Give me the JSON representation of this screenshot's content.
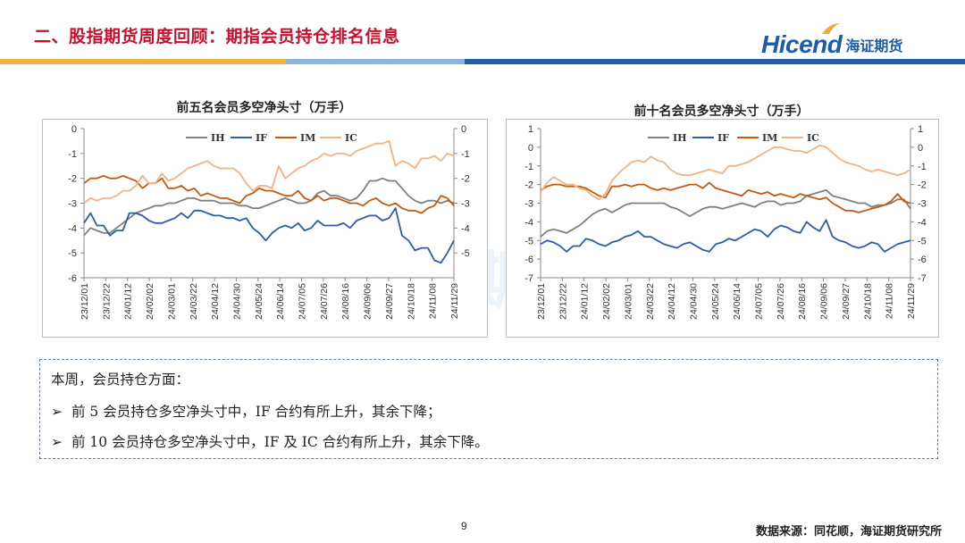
{
  "header": {
    "title": "二、股指期货周度回顾：期指会员持仓排名信息",
    "logo_en": "Hicend",
    "logo_cn": "海证期货"
  },
  "colors": {
    "IH": "#7f7f7f",
    "IF": "#2e5ca8",
    "IM": "#c55a11",
    "IC": "#f4b183",
    "title_red": "#c8102e",
    "bar_orange": "#f3a93c",
    "bar_blue": "#1f5fa6"
  },
  "x_labels": [
    "23/12/01",
    "23/12/22",
    "24/01/12",
    "24/02/02",
    "24/03/01",
    "24/03/22",
    "24/04/12",
    "24/04/30",
    "24/05/24",
    "24/06/14",
    "24/07/05",
    "24/07/26",
    "24/08/16",
    "24/09/06",
    "24/09/27",
    "24/10/18",
    "24/11/08",
    "24/11/29"
  ],
  "chart_data": [
    {
      "type": "line",
      "title": "前五名会员多空净头寸（万手）",
      "ylim": [
        -6,
        0
      ],
      "yticks": [
        0,
        -1,
        -2,
        -3,
        -4,
        -5,
        -6
      ],
      "y2ticks": [
        0,
        -1,
        -2,
        -3,
        -4,
        -5
      ],
      "legend": "top-center",
      "n_points": 58,
      "series": [
        {
          "name": "IH",
          "values": [
            -4.3,
            -4.0,
            -4.1,
            -4.2,
            -4.2,
            -4.0,
            -3.8,
            -3.6,
            -3.4,
            -3.3,
            -3.2,
            -3.1,
            -3.1,
            -3.0,
            -3.0,
            -2.9,
            -2.8,
            -2.8,
            -2.9,
            -2.9,
            -2.9,
            -3.0,
            -3.0,
            -3.0,
            -3.1,
            -3.1,
            -3.2,
            -3.2,
            -3.1,
            -3.0,
            -2.9,
            -2.8,
            -2.9,
            -3.0,
            -3.0,
            -2.9,
            -2.6,
            -2.5,
            -2.7,
            -2.7,
            -2.8,
            -2.9,
            -2.8,
            -2.5,
            -2.1,
            -2.1,
            -2.0,
            -2.1,
            -2.1,
            -2.4,
            -2.7,
            -2.9,
            -3.0,
            -2.9,
            -2.9,
            -3.0,
            -2.9,
            -3.0
          ]
        },
        {
          "name": "IF",
          "values": [
            -3.8,
            -3.4,
            -3.9,
            -3.9,
            -4.3,
            -4.1,
            -4.1,
            -3.4,
            -3.4,
            -3.5,
            -3.7,
            -3.8,
            -3.8,
            -3.7,
            -3.6,
            -3.4,
            -3.6,
            -3.3,
            -3.3,
            -3.4,
            -3.5,
            -3.5,
            -3.6,
            -3.6,
            -3.7,
            -3.6,
            -4.0,
            -4.2,
            -4.5,
            -4.2,
            -4.0,
            -3.9,
            -4.0,
            -3.8,
            -4.1,
            -4.0,
            -3.7,
            -3.9,
            -3.9,
            -3.9,
            -3.8,
            -4.0,
            -3.7,
            -3.6,
            -3.5,
            -3.5,
            -3.7,
            -3.6,
            -3.2,
            -4.3,
            -4.5,
            -4.9,
            -4.8,
            -4.8,
            -5.3,
            -5.4,
            -5.0,
            -4.5
          ]
        },
        {
          "name": "IM",
          "values": [
            -2.2,
            -2.0,
            -2.0,
            -1.9,
            -2.0,
            -2.0,
            -1.9,
            -2.0,
            -2.1,
            -2.4,
            -2.2,
            -2.2,
            -2.0,
            -2.4,
            -2.4,
            -2.3,
            -2.5,
            -2.4,
            -2.7,
            -2.6,
            -2.7,
            -2.8,
            -2.8,
            -2.9,
            -3.0,
            -2.7,
            -2.6,
            -2.4,
            -2.5,
            -2.5,
            -2.6,
            -2.7,
            -2.7,
            -2.5,
            -2.8,
            -2.9,
            -2.7,
            -2.9,
            -2.8,
            -2.8,
            -2.9,
            -3.0,
            -3.0,
            -3.1,
            -2.9,
            -2.8,
            -3.0,
            -3.1,
            -3.0,
            -3.2,
            -3.3,
            -3.3,
            -3.4,
            -3.2,
            -3.1,
            -2.7,
            -2.8,
            -3.1
          ]
        },
        {
          "name": "IC",
          "values": [
            -3.0,
            -2.8,
            -2.9,
            -2.8,
            -2.8,
            -2.7,
            -2.5,
            -2.5,
            -2.3,
            -1.9,
            -2.2,
            -2.2,
            -1.8,
            -2.1,
            -2.0,
            -1.8,
            -1.6,
            -1.5,
            -1.4,
            -1.3,
            -1.5,
            -1.6,
            -1.6,
            -1.6,
            -1.8,
            -2.2,
            -2.5,
            -2.3,
            -2.3,
            -2.4,
            -1.5,
            -2.0,
            -1.8,
            -1.6,
            -1.5,
            -1.3,
            -1.2,
            -1.0,
            -1.1,
            -1.0,
            -1.0,
            -1.1,
            -0.9,
            -0.8,
            -0.7,
            -0.6,
            -0.6,
            -0.5,
            -1.5,
            -1.3,
            -1.4,
            -1.6,
            -1.2,
            -1.2,
            -1.1,
            -1.3,
            -1.0,
            -1.1
          ]
        }
      ]
    },
    {
      "type": "line",
      "title": "前十名会员多空净头寸（万手）",
      "ylim": [
        -7,
        1
      ],
      "yticks": [
        1,
        0,
        -1,
        -2,
        -3,
        -4,
        -5,
        -6,
        -7
      ],
      "y2ticks": [
        1,
        0,
        -1,
        -2,
        -3,
        -4,
        -5,
        -6,
        -7
      ],
      "legend": "top-center",
      "n_points": 58,
      "series": [
        {
          "name": "IH",
          "values": [
            -4.8,
            -4.5,
            -4.4,
            -4.5,
            -4.6,
            -4.4,
            -4.2,
            -3.9,
            -3.6,
            -3.4,
            -3.3,
            -3.5,
            -3.3,
            -3.1,
            -3.0,
            -3.0,
            -3.0,
            -3.0,
            -3.0,
            -3.0,
            -3.2,
            -3.3,
            -3.5,
            -3.7,
            -3.5,
            -3.3,
            -3.2,
            -3.2,
            -3.3,
            -3.2,
            -3.1,
            -3.0,
            -3.1,
            -3.2,
            -3.0,
            -2.9,
            -2.9,
            -3.1,
            -3.0,
            -3.0,
            -2.9,
            -2.6,
            -2.5,
            -2.4,
            -2.3,
            -2.6,
            -2.7,
            -2.8,
            -2.9,
            -3.0,
            -3.0,
            -3.2,
            -3.1,
            -3.1,
            -3.0,
            -2.8,
            -2.8,
            -3.3
          ]
        },
        {
          "name": "IF",
          "values": [
            -5.2,
            -5.0,
            -5.1,
            -5.3,
            -5.6,
            -5.3,
            -5.3,
            -4.9,
            -5.0,
            -5.2,
            -5.3,
            -5.1,
            -5.0,
            -4.8,
            -4.7,
            -4.5,
            -4.8,
            -4.8,
            -5.0,
            -5.2,
            -5.3,
            -5.4,
            -5.2,
            -5.1,
            -5.3,
            -5.5,
            -5.6,
            -5.2,
            -5.1,
            -4.9,
            -5.0,
            -4.8,
            -4.6,
            -4.4,
            -4.5,
            -4.8,
            -4.4,
            -4.2,
            -4.3,
            -4.5,
            -4.6,
            -4.0,
            -4.3,
            -4.5,
            -3.9,
            -4.8,
            -5.0,
            -5.1,
            -5.3,
            -5.4,
            -5.3,
            -5.1,
            -5.2,
            -5.6,
            -5.4,
            -5.2,
            -5.1,
            -5.0
          ]
        },
        {
          "name": "IM",
          "values": [
            -2.3,
            -2.1,
            -2.0,
            -2.0,
            -2.1,
            -2.1,
            -2.1,
            -2.2,
            -2.4,
            -2.6,
            -2.7,
            -2.1,
            -2.1,
            -2.0,
            -2.1,
            -2.0,
            -2.0,
            -2.2,
            -2.3,
            -2.2,
            -2.3,
            -2.2,
            -2.1,
            -2.0,
            -2.0,
            -2.2,
            -1.9,
            -2.2,
            -2.3,
            -2.4,
            -2.5,
            -2.6,
            -2.3,
            -2.4,
            -2.5,
            -2.4,
            -2.6,
            -2.5,
            -2.6,
            -2.7,
            -2.5,
            -2.6,
            -2.7,
            -2.8,
            -2.7,
            -3.0,
            -3.2,
            -3.4,
            -3.4,
            -3.5,
            -3.4,
            -3.3,
            -3.2,
            -3.1,
            -2.9,
            -2.5,
            -2.9,
            -3.0
          ]
        },
        {
          "name": "IC",
          "values": [
            -2.4,
            -1.9,
            -1.6,
            -1.8,
            -2.0,
            -2.0,
            -2.2,
            -2.3,
            -2.6,
            -2.8,
            -2.5,
            -1.8,
            -1.4,
            -1.1,
            -0.8,
            -0.7,
            -0.8,
            -0.5,
            -0.7,
            -0.8,
            -1.2,
            -1.4,
            -1.5,
            -1.5,
            -1.4,
            -1.3,
            -1.2,
            -1.3,
            -1.4,
            -1.0,
            -1.0,
            -0.9,
            -0.8,
            -0.6,
            -0.4,
            -0.2,
            0.0,
            0.0,
            -0.1,
            -0.2,
            -0.2,
            -0.3,
            -0.1,
            0.1,
            0.0,
            -0.3,
            -0.6,
            -0.8,
            -0.9,
            -1.0,
            -1.2,
            -1.3,
            -1.2,
            -1.3,
            -1.4,
            -1.5,
            -1.4,
            -1.2
          ]
        }
      ]
    }
  ],
  "summary": {
    "intro": "本周，会员持仓方面：",
    "bullets": [
      "前 5 会员持仓多空净头寸中，IF 合约有所上升，其余下降；",
      "前 10 会员持仓多空净头寸中，IF 及 IC 合约有所上升，其余下降。"
    ],
    "bullet_mark": "➢"
  },
  "footer": {
    "page_number": "9",
    "source": "数据来源：同花顺，海证期货研究所"
  }
}
